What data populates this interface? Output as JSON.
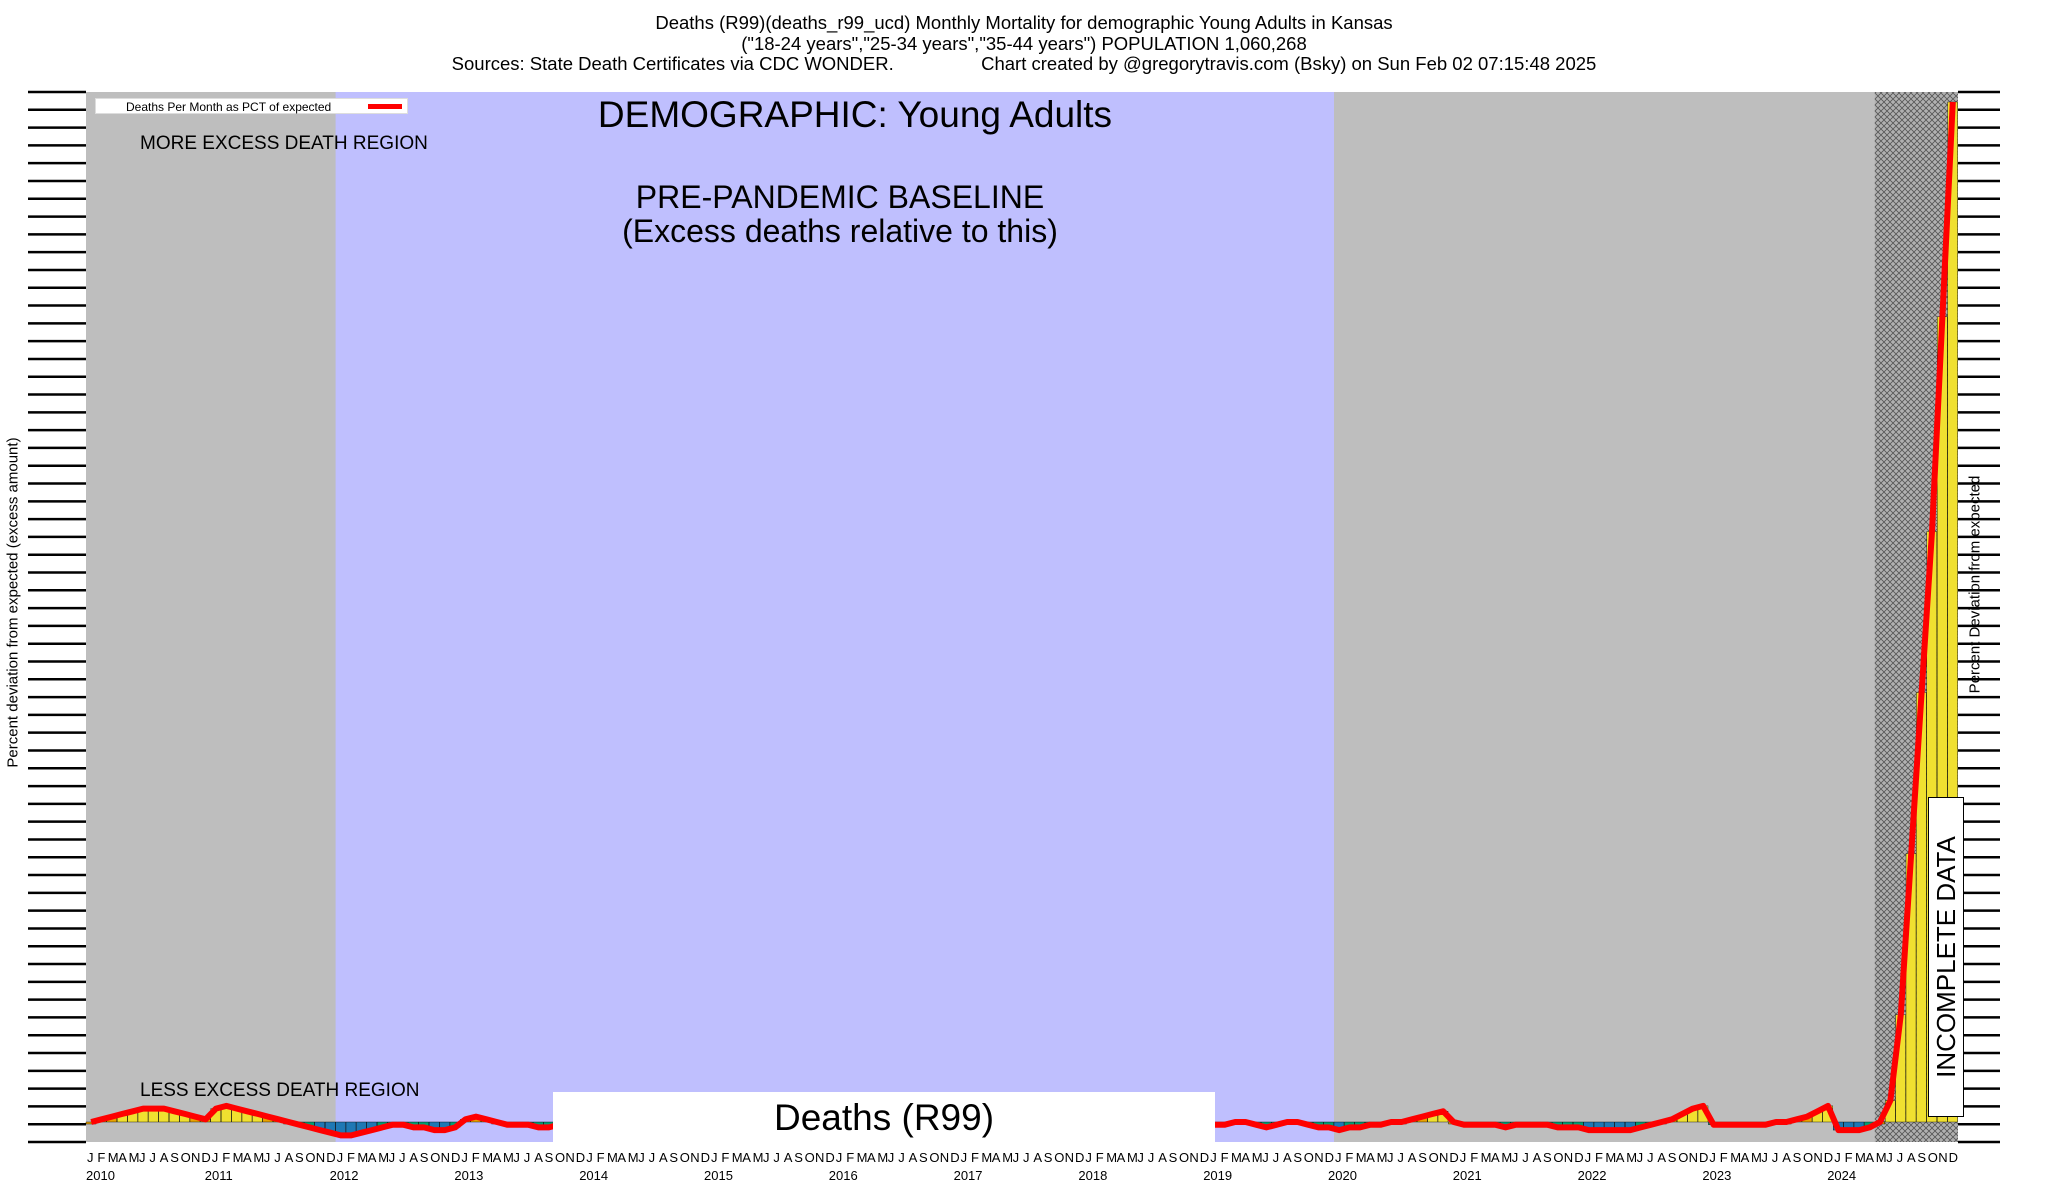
{
  "header": {
    "line1": "Deaths (R99)(deaths_r99_ucd) Monthly Mortality for demographic Young Adults in Kansas",
    "line2": "(\"18-24 years\",\"25-34 years\",\"35-44 years\") POPULATION 1,060,268",
    "line3": "Sources: State Death Certificates via CDC WONDER.                 Chart created by @gregorytravis.com (Bsky) on Sun Feb 02 07:15:48 2025"
  },
  "chart_data": {
    "type": "bar",
    "title": "DEMOGRAPHIC: Young Adults",
    "series_label": "Deaths (R99)",
    "legend_label": "Deaths Per Month as PCT of expected",
    "ylabel_left": "Percent deviation from expected (excess amount)",
    "ylabel_right": "Percent Deviation from expected",
    "annotations": {
      "more_region": "MORE EXCESS DEATH REGION",
      "less_region": "LESS EXCESS DEATH REGION",
      "baseline_title": "PRE-PANDEMIC BASELINE",
      "baseline_sub": "(Excess deaths relative to this)",
      "incomplete": "INCOMPLETE DATA"
    },
    "baseline_period": [
      "2012-01",
      "2019-12"
    ],
    "incomplete_period": [
      "2024-05",
      "2024-12"
    ],
    "month_letters": [
      "J",
      "F",
      "M",
      "A",
      "M",
      "J",
      "J",
      "A",
      "S",
      "O",
      "N",
      "D"
    ],
    "years": [
      "2010",
      "2011",
      "2012",
      "2013",
      "2014",
      "2015",
      "2016",
      "2017",
      "2018",
      "2019",
      "2020",
      "2021",
      "2022",
      "2023",
      "2024"
    ],
    "values": [
      0,
      1,
      2,
      3,
      4,
      5,
      5,
      5,
      4,
      3,
      2,
      1,
      5,
      6,
      5,
      4,
      3,
      2,
      1,
      0,
      -1,
      -2,
      -3,
      -4,
      -5,
      -5,
      -4,
      -3,
      -2,
      -1,
      -1,
      -2,
      -2,
      -3,
      -3,
      -2,
      1,
      2,
      1,
      0,
      -1,
      -1,
      -1,
      -2,
      -2,
      -1,
      -1,
      0,
      -1,
      -1,
      -1,
      -1,
      -1,
      -1,
      -1,
      -1,
      -1,
      -1,
      -1,
      -1,
      -1,
      -1,
      -1,
      -1,
      -1,
      -1,
      -1,
      -1,
      -1,
      -1,
      -1,
      -1,
      -1,
      -1,
      -1,
      -1,
      -1,
      -1,
      -1,
      -1,
      -1,
      -1,
      -1,
      -1,
      -1,
      -1,
      -1,
      -1,
      -1,
      -1,
      -1,
      -1,
      -1,
      -1,
      -1,
      -1,
      -1,
      -1,
      -1,
      -1,
      -1,
      -1,
      -1,
      -1,
      -1,
      -1,
      -1,
      -1,
      -1,
      -1,
      0,
      0,
      -1,
      -2,
      -1,
      0,
      0,
      -1,
      -2,
      -2,
      -3,
      -2,
      -2,
      -1,
      -1,
      0,
      0,
      1,
      2,
      3,
      4,
      0,
      -1,
      -1,
      -1,
      -1,
      -2,
      -1,
      -1,
      -1,
      -1,
      -2,
      -2,
      -2,
      -3,
      -3,
      -3,
      -3,
      -3,
      -2,
      -1,
      0,
      1,
      3,
      5,
      6,
      -1,
      -1,
      -1,
      -1,
      -1,
      -1,
      0,
      0,
      1,
      2,
      4,
      6,
      -3,
      -3,
      -3,
      -2,
      0,
      8,
      40,
      100,
      160,
      220,
      300,
      380
    ],
    "colors": {
      "line": "#ff0000",
      "baseline_shade": "#bfbffe",
      "region_shade": "#bebebe",
      "bar_high": "#f0e030",
      "bar_mid": "#e8a200",
      "bar_low": "#1f78b4",
      "bar_green": "#009e73"
    }
  }
}
